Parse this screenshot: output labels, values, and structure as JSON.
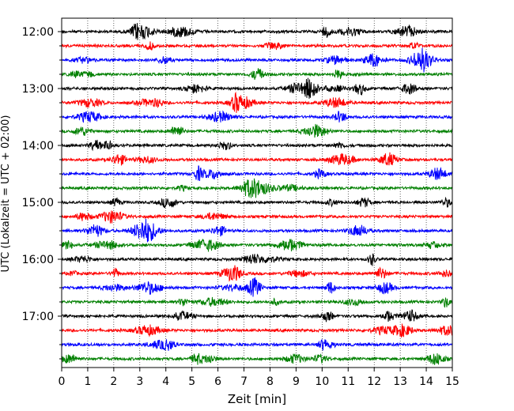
{
  "chart_data": {
    "type": "line",
    "title": "",
    "xlabel": "Zeit  [min]",
    "ylabel": "UTC (Lokalzeit = UTC + 02:00)",
    "xlim": [
      0,
      15
    ],
    "x_ticks": [
      0,
      1,
      2,
      3,
      4,
      5,
      6,
      7,
      8,
      9,
      10,
      11,
      12,
      13,
      14,
      15
    ],
    "y_tick_labels": [
      "12:00",
      "13:00",
      "14:00",
      "15:00",
      "16:00",
      "17:00"
    ],
    "row_interval_min": 15,
    "row_color_cycle": [
      "#000000",
      "#ff0000",
      "#0000ff",
      "#008000"
    ],
    "grid": "vertical dotted",
    "traces": [
      {
        "start": "12:00",
        "color": "#000000"
      },
      {
        "start": "12:15",
        "color": "#ff0000"
      },
      {
        "start": "12:30",
        "color": "#0000ff"
      },
      {
        "start": "12:45",
        "color": "#008000"
      },
      {
        "start": "13:00",
        "color": "#000000"
      },
      {
        "start": "13:15",
        "color": "#ff0000"
      },
      {
        "start": "13:30",
        "color": "#0000ff"
      },
      {
        "start": "13:45",
        "color": "#008000"
      },
      {
        "start": "14:00",
        "color": "#000000"
      },
      {
        "start": "14:15",
        "color": "#ff0000"
      },
      {
        "start": "14:30",
        "color": "#0000ff"
      },
      {
        "start": "14:45",
        "color": "#008000"
      },
      {
        "start": "15:00",
        "color": "#000000"
      },
      {
        "start": "15:15",
        "color": "#ff0000"
      },
      {
        "start": "15:30",
        "color": "#0000ff"
      },
      {
        "start": "15:45",
        "color": "#008000"
      },
      {
        "start": "16:00",
        "color": "#000000"
      },
      {
        "start": "16:15",
        "color": "#ff0000"
      },
      {
        "start": "16:30",
        "color": "#0000ff"
      },
      {
        "start": "16:45",
        "color": "#008000"
      },
      {
        "start": "17:00",
        "color": "#000000"
      },
      {
        "start": "17:15",
        "color": "#ff0000"
      },
      {
        "start": "17:30",
        "color": "#0000ff"
      },
      {
        "start": "17:45",
        "color": "#008000"
      }
    ]
  }
}
